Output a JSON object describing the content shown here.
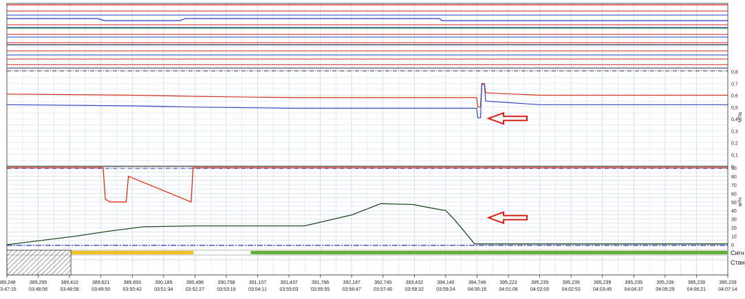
{
  "chart_data": [
    {
      "type": "line",
      "panel": "digital-signals",
      "series": [
        {
          "color": "#d21e1e",
          "values": [
            [
              389.248,
              1
            ],
            [
              395.239,
              1
            ]
          ]
        },
        {
          "color": "#2a36c8",
          "values": [
            [
              389.248,
              1
            ],
            [
              389.6,
              1
            ],
            [
              389.65,
              0
            ],
            [
              390.35,
              0
            ],
            [
              390.4,
              1
            ],
            [
              394.0,
              1
            ],
            [
              394.05,
              0
            ],
            [
              395.239,
              0
            ]
          ]
        },
        {
          "color": "#28a028",
          "values": [
            [
              389.248,
              1
            ],
            [
              395.239,
              1
            ]
          ]
        },
        {
          "color": "#22244a",
          "values": [
            [
              389.248,
              1
            ],
            [
              395.239,
              1
            ]
          ]
        }
      ]
    },
    {
      "type": "line",
      "panel": "pressure",
      "ylabel": "МПа",
      "ylim": [
        0,
        0.8
      ],
      "yticks": [
        "0",
        "0,1",
        "0,2",
        "0,3",
        "0,4",
        "0,5",
        "0,6",
        "0,7",
        "0,8"
      ],
      "series": [
        {
          "color": "#d0301a",
          "values": [
            [
              389.248,
              0.61
            ],
            [
              389.9,
              0.6
            ],
            [
              390.5,
              0.59
            ],
            [
              391.5,
              0.58
            ],
            [
              392.5,
              0.58
            ],
            [
              393.4,
              0.58
            ],
            [
              394.5,
              0.58
            ],
            [
              394.74,
              0.58
            ],
            [
              394.76,
              0.5
            ],
            [
              394.8,
              0.5
            ],
            [
              394.82,
              0.7
            ],
            [
              394.86,
              0.7
            ],
            [
              394.88,
              0.62
            ],
            [
              395.239,
              0.6
            ]
          ]
        },
        {
          "color": "#3048c0",
          "values": [
            [
              389.248,
              0.52
            ],
            [
              389.9,
              0.51
            ],
            [
              390.5,
              0.5
            ],
            [
              391.5,
              0.49
            ],
            [
              393.4,
              0.49
            ],
            [
              394.74,
              0.49
            ],
            [
              394.76,
              0.41
            ],
            [
              394.8,
              0.41
            ],
            [
              394.82,
              0.69
            ],
            [
              394.86,
              0.69
            ],
            [
              394.88,
              0.55
            ],
            [
              395.239,
              0.52
            ]
          ]
        }
      ]
    },
    {
      "type": "line",
      "panel": "flow",
      "ylabel": "м³/ч",
      "ylim": [
        0,
        90
      ],
      "yticks": [
        "0",
        "10",
        "20",
        "30",
        "40",
        "50",
        "60",
        "70",
        "80",
        "90"
      ],
      "series": [
        {
          "color": "#e02a10",
          "values": [
            [
              389.248,
              90
            ],
            [
              389.64,
              90
            ],
            [
              389.66,
              53
            ],
            [
              389.7,
              50
            ],
            [
              389.84,
              50
            ],
            [
              389.86,
              80
            ],
            [
              390.46,
              50
            ],
            [
              390.48,
              90
            ],
            [
              395.239,
              90
            ]
          ]
        },
        {
          "color": "#1f4a1f",
          "values": [
            [
              389.248,
              0
            ],
            [
              389.45,
              10
            ],
            [
              389.7,
              16
            ],
            [
              390.0,
              21
            ],
            [
              390.5,
              22
            ],
            [
              391.2,
              22
            ],
            [
              391.6,
              22
            ],
            [
              392.2,
              35
            ],
            [
              392.7,
              48
            ],
            [
              393.4,
              47
            ],
            [
              393.9,
              42
            ],
            [
              394.14,
              40
            ],
            [
              394.3,
              30
            ],
            [
              394.55,
              12
            ],
            [
              394.7,
              1
            ],
            [
              395.239,
              1
            ]
          ]
        }
      ]
    }
  ],
  "axis": {
    "xticks": [
      {
        "value": "389,248",
        "time": "03:47:15"
      },
      {
        "value": "389,295",
        "time": "03:48:06"
      },
      {
        "value": "389,410",
        "time": "03:48:58"
      },
      {
        "value": "389,621",
        "time": "03:49:50"
      },
      {
        "value": "389,893",
        "time": "03:50:42"
      },
      {
        "value": "390,189",
        "time": "03:51:34"
      },
      {
        "value": "390,498",
        "time": "03:52:27"
      },
      {
        "value": "390,798",
        "time": "03:53:19"
      },
      {
        "value": "391,107",
        "time": "03:54:11"
      },
      {
        "value": "391,437",
        "time": "03:55:03"
      },
      {
        "value": "391,766",
        "time": "03:55:55"
      },
      {
        "value": "392,187",
        "time": "03:56:47"
      },
      {
        "value": "392,740",
        "time": "03:57:40"
      },
      {
        "value": "393,432",
        "time": "03:58:32"
      },
      {
        "value": "394,140",
        "time": "03:59:24"
      },
      {
        "value": "394,748",
        "time": "04:00:16"
      },
      {
        "value": "395,223",
        "time": "04:01:08"
      },
      {
        "value": "395,239",
        "time": "04:02:00"
      },
      {
        "value": "395,239",
        "time": "04:02:53"
      },
      {
        "value": "395,239",
        "time": "04:03:45"
      },
      {
        "value": "395,239",
        "time": "04:04:37"
      },
      {
        "value": "395,239",
        "time": "04:05:29"
      },
      {
        "value": "395,239",
        "time": "04:06:21"
      },
      {
        "value": "395,239",
        "time": "04:07:14"
      }
    ]
  },
  "legend": {
    "signal_label": "Сигн",
    "station_label": "Стан"
  },
  "colors": {
    "grid": "#c9daf0",
    "arrow": "#d81e12",
    "yellow": "#f0c020",
    "green": "#62b238"
  }
}
